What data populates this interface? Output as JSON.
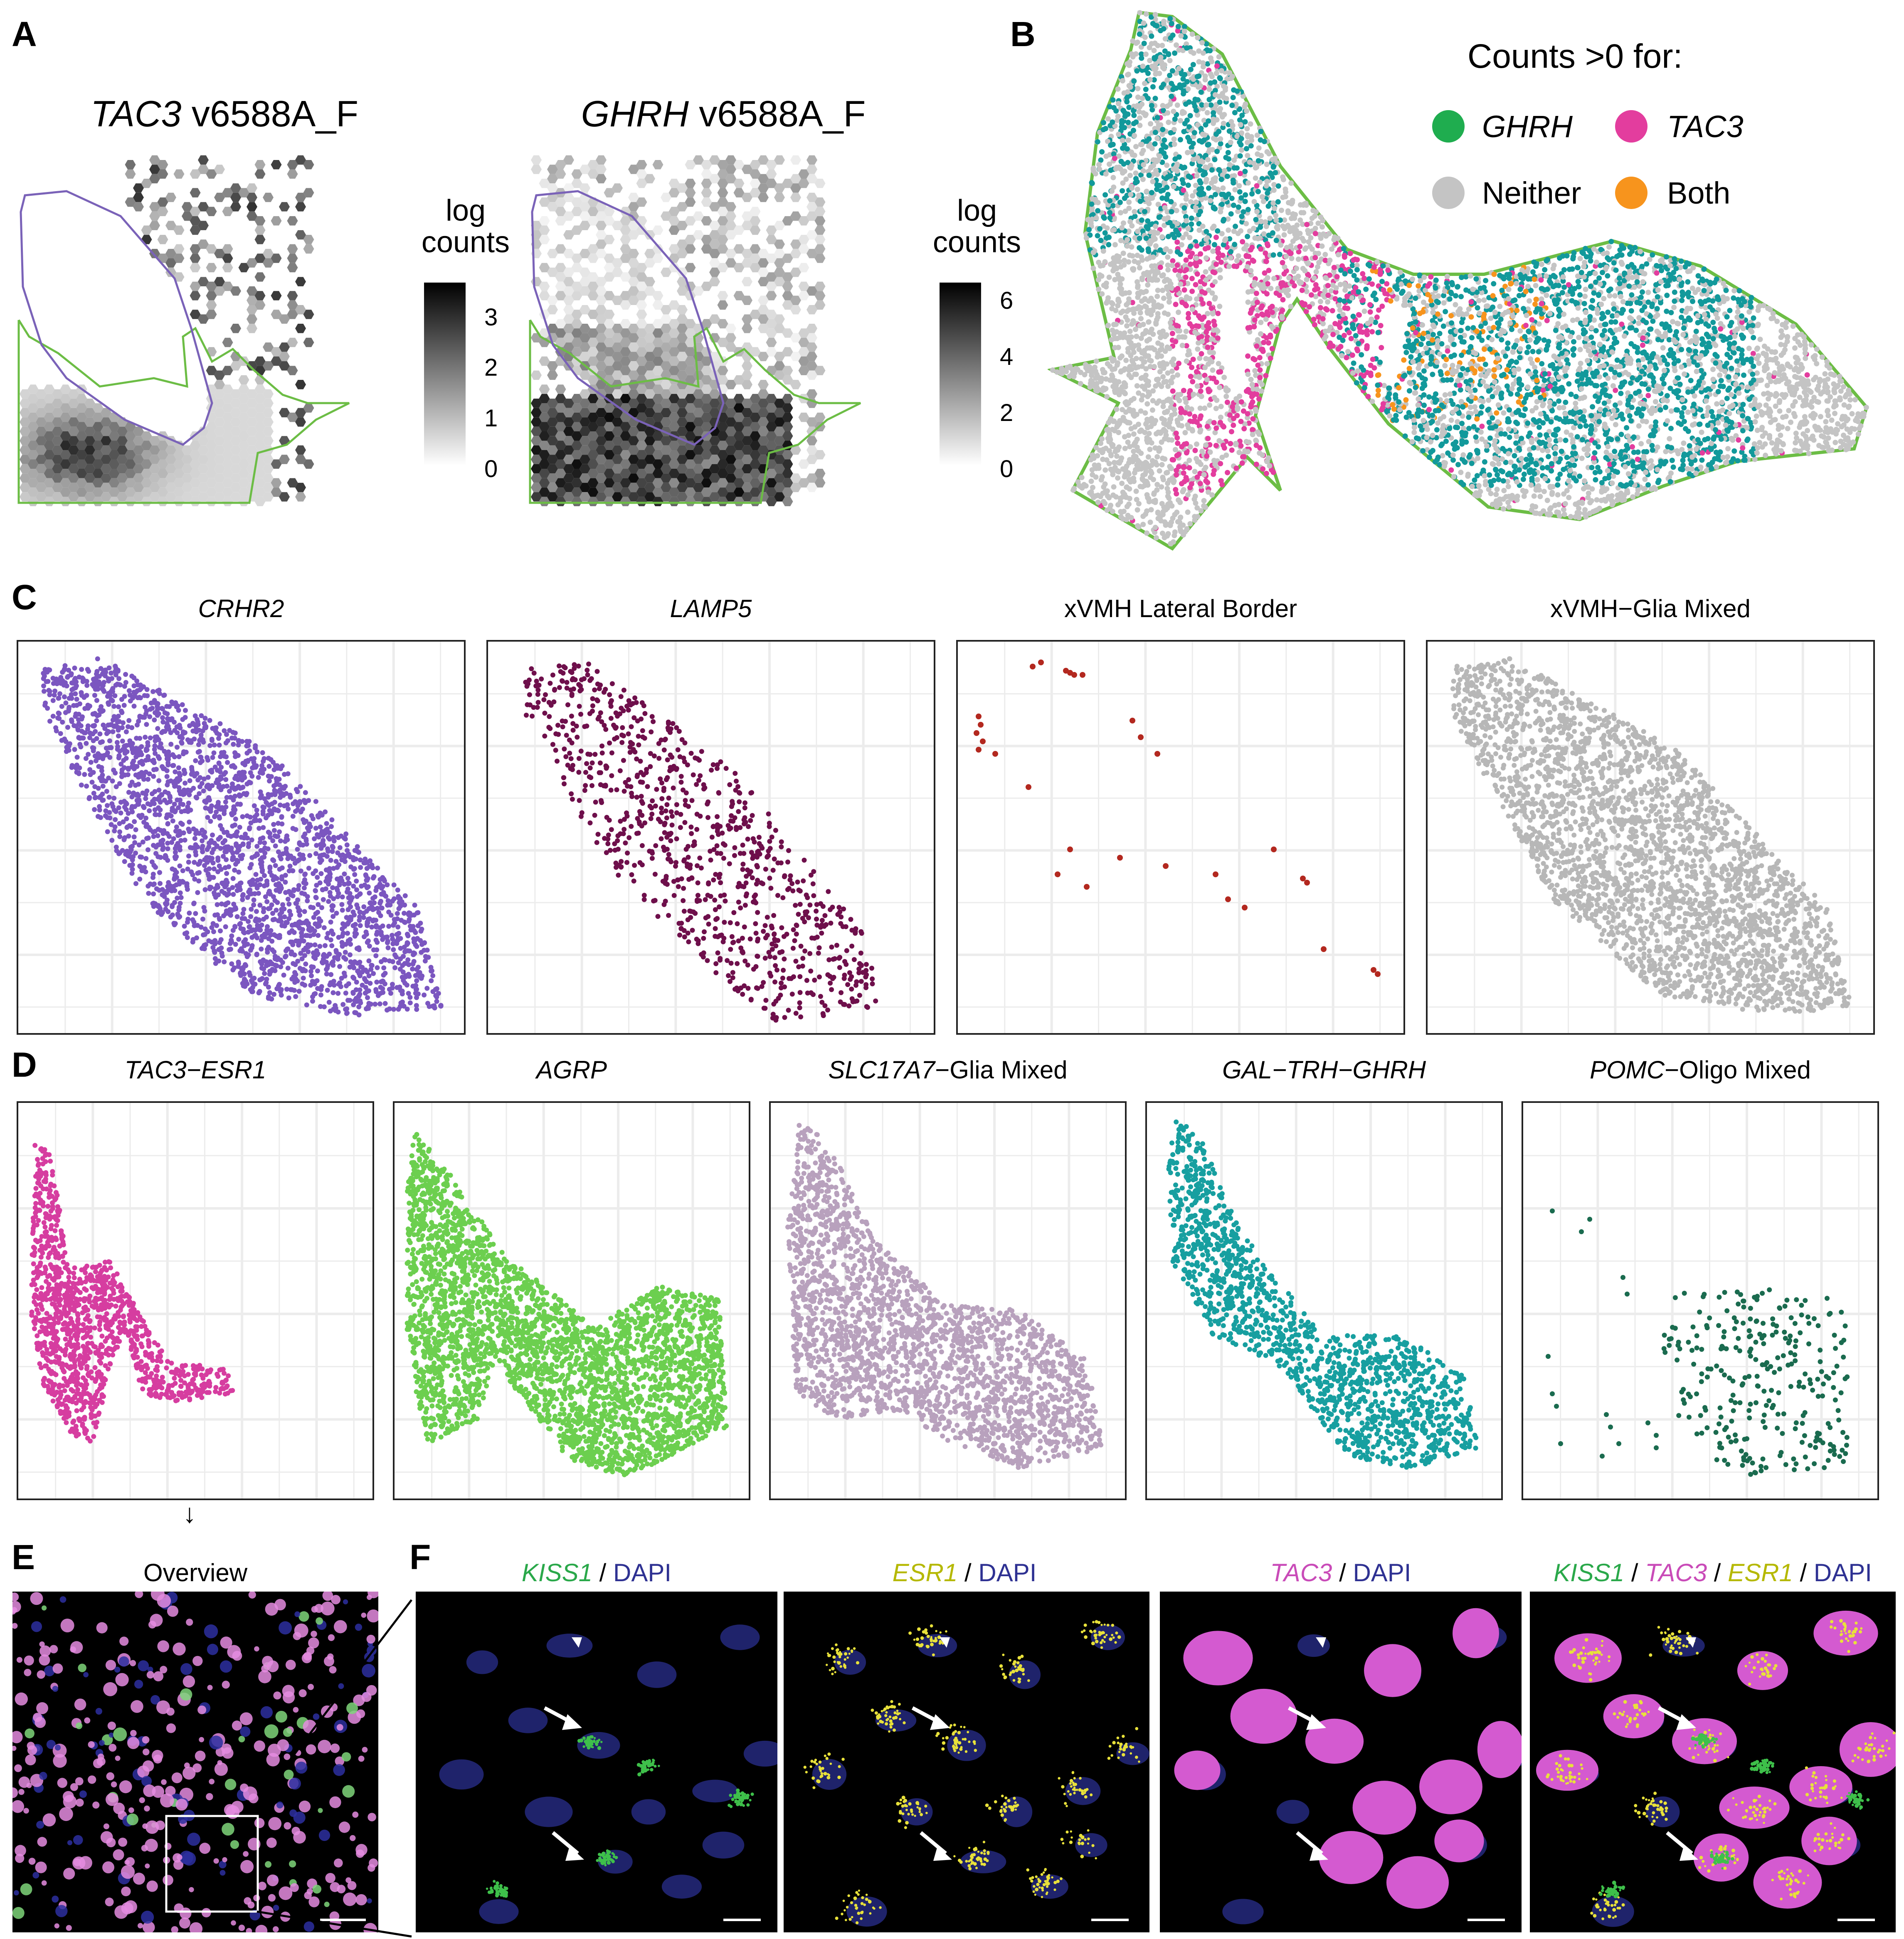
{
  "panel_labels": {
    "a": "A",
    "b": "B",
    "c": "C",
    "d": "D",
    "e": "E",
    "f": "F"
  },
  "panel_a": {
    "plots": [
      {
        "gene": "TAC3",
        "suffix": " v6588A_F",
        "legend_title_line1": "log",
        "legend_title_line2": "counts",
        "ticks": [
          "3",
          "2",
          "1",
          "0"
        ],
        "max": 3.6
      },
      {
        "gene": "GHRH",
        "suffix": " v6588A_F",
        "legend_title_line1": "log",
        "legend_title_line2": "counts",
        "ticks": [
          "6",
          "4",
          "2",
          "0"
        ],
        "max": 6.6
      }
    ]
  },
  "panel_b": {
    "legend_title": "Counts >0 for:",
    "items": [
      {
        "label": "GHRH",
        "italic": true,
        "color": "#1fad4f"
      },
      {
        "label": "TAC3",
        "italic": true,
        "color": "#e33d9e"
      },
      {
        "label": "Neither",
        "italic": false,
        "color": "#c4c4c4"
      },
      {
        "label": "Both",
        "italic": false,
        "color": "#f7941d"
      }
    ],
    "outline_color": "#6cbd45",
    "teal": "#12999b"
  },
  "panel_c": {
    "plots": [
      {
        "title": "CRHR2",
        "italic": true,
        "color": "#7b56c0"
      },
      {
        "title": "LAMP5",
        "italic": true,
        "color": "#6e0f4b"
      },
      {
        "title": "xVMH Lateral Border",
        "italic": false,
        "color": "#b3281f"
      },
      {
        "title": "xVMH−Glia Mixed",
        "italic": false,
        "color": "#b7b7b7"
      }
    ]
  },
  "panel_d": {
    "plots": [
      {
        "title": "TAC3−ESR1",
        "italic_part": "TAC3−ESR1",
        "plain_part": "",
        "color": "#d63da0"
      },
      {
        "title": "AGRP",
        "italic_part": "AGRP",
        "plain_part": "",
        "color": "#6ccf4f"
      },
      {
        "title": "SLC17A7−Glia Mixed",
        "italic_part": "SLC17A7",
        "plain_part": "−Glia Mixed",
        "color": "#b8a1bd"
      },
      {
        "title": "GAL−TRH−GHRH",
        "italic_part": "GAL−TRH−GHRH",
        "plain_part": "",
        "color": "#179fa0"
      },
      {
        "title": "POMC−Oligo Mixed",
        "italic_part": "POMC",
        "plain_part": "−Oligo Mixed",
        "color": "#1a6b4f"
      }
    ],
    "arrow": "↓"
  },
  "panel_e": {
    "title": "Overview"
  },
  "panel_f": {
    "images": [
      {
        "parts": [
          {
            "t": "KISS1",
            "c": "#2aa84a",
            "i": true
          },
          {
            "t": " / ",
            "c": "#000",
            "i": false
          },
          {
            "t": "DAPI",
            "c": "#2e3192",
            "i": false
          }
        ]
      },
      {
        "parts": [
          {
            "t": "ESR1",
            "c": "#b5b800",
            "i": true
          },
          {
            "t": " / ",
            "c": "#000",
            "i": false
          },
          {
            "t": "DAPI",
            "c": "#2e3192",
            "i": false
          }
        ]
      },
      {
        "parts": [
          {
            "t": "TAC3",
            "c": "#c94bb8",
            "i": true
          },
          {
            "t": " / ",
            "c": "#000",
            "i": false
          },
          {
            "t": "DAPI",
            "c": "#2e3192",
            "i": false
          }
        ]
      },
      {
        "parts": [
          {
            "t": "KISS1",
            "c": "#2aa84a",
            "i": true
          },
          {
            "t": " / ",
            "c": "#000",
            "i": false
          },
          {
            "t": "TAC3",
            "c": "#c94bb8",
            "i": true
          },
          {
            "t": " / ",
            "c": "#000",
            "i": false
          },
          {
            "t": "ESR1",
            "c": "#b5b800",
            "i": true
          },
          {
            "t": " / ",
            "c": "#000",
            "i": false
          },
          {
            "t": "DAPI",
            "c": "#2e3192",
            "i": false
          }
        ]
      }
    ]
  }
}
